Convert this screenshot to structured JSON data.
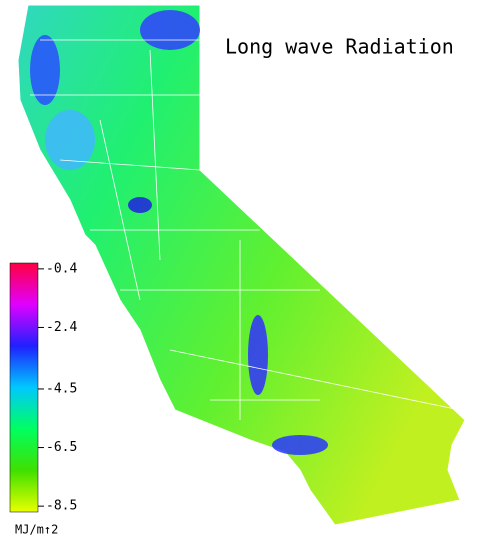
{
  "chart_data": {
    "type": "colormap",
    "title": "Long wave Radiation",
    "colorbar": {
      "label": "MJ/m↑2",
      "lim": [
        -8.7,
        -0.2
      ],
      "ticks": [
        -0.4,
        -2.4,
        -4.5,
        -6.5,
        -8.5
      ],
      "colors": [
        "#ff0040",
        "#e000ff",
        "#2020ff",
        "#00c8ff",
        "#00ff60",
        "#40e000",
        "#e8ff00"
      ]
    }
  }
}
